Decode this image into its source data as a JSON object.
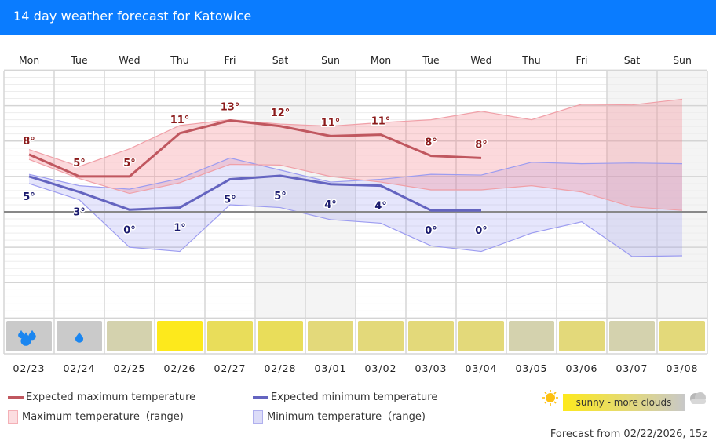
{
  "header": {
    "title": "14 day weather forecast for Katowice"
  },
  "chart_data": {
    "type": "line",
    "title": "14 day weather forecast for Katowice",
    "ylim": [
      -15,
      20
    ],
    "unit": "°",
    "grid": true,
    "days": [
      "Mon",
      "Tue",
      "Wed",
      "Thu",
      "Fri",
      "Sat",
      "Sun",
      "Mon",
      "Tue",
      "Wed",
      "Thu",
      "Fri",
      "Sat",
      "Sun"
    ],
    "dates": [
      "02/23",
      "02/24",
      "02/25",
      "02/26",
      "02/27",
      "02/28",
      "03/01",
      "03/02",
      "03/03",
      "03/04",
      "03/05",
      "03/06",
      "03/07",
      "03/08"
    ],
    "weekend": [
      false,
      false,
      false,
      false,
      false,
      true,
      true,
      false,
      false,
      false,
      false,
      false,
      true,
      true
    ],
    "series": [
      {
        "name": "Expected maximum temperature",
        "color": "#c0575f",
        "values": [
          8.1,
          5.0,
          5.0,
          11.1,
          12.9,
          12.1,
          10.7,
          10.9,
          7.9,
          7.6,
          null,
          null,
          null,
          null
        ],
        "labels": [
          "8°",
          "5°",
          "5°",
          "11°",
          "13°",
          "12°",
          "11°",
          "11°",
          "8°",
          "8°",
          "",
          "",
          "",
          ""
        ]
      },
      {
        "name": "Expected minimum temperature",
        "color": "#6464c0",
        "values": [
          5.0,
          2.8,
          0.3,
          0.6,
          4.6,
          5.1,
          3.9,
          3.7,
          0.2,
          0.2,
          null,
          null,
          null,
          null
        ],
        "labels": [
          "5°",
          "3°",
          "0°",
          "1°",
          "5°",
          "5°",
          "4°",
          "4°",
          "0°",
          "0°",
          "",
          "",
          "",
          ""
        ]
      },
      {
        "name": "Maximum temperature (range)",
        "color": "#f4a0a8",
        "upper": [
          8.8,
          6.4,
          8.9,
          12.2,
          13.0,
          12.4,
          12.1,
          12.6,
          13.0,
          14.2,
          13.0,
          15.2,
          15.1,
          15.9
        ],
        "lower": [
          7.4,
          4.7,
          2.6,
          4.1,
          6.7,
          6.6,
          5.0,
          4.2,
          3.1,
          3.1,
          3.7,
          2.8,
          0.7,
          0.2
        ]
      },
      {
        "name": "Minimum temperature (range)",
        "color": "#9c9cf0",
        "upper": [
          5.3,
          3.7,
          3.2,
          4.7,
          7.6,
          5.9,
          4.2,
          4.6,
          5.3,
          5.2,
          7.0,
          6.8,
          6.9,
          6.8
        ],
        "lower": [
          4.0,
          1.7,
          -5.0,
          -5.6,
          1.0,
          0.6,
          -1.1,
          -1.6,
          -4.8,
          -5.6,
          -3.0,
          -1.4,
          -6.3,
          -6.2
        ]
      }
    ],
    "conditions": [
      {
        "kind": "rain-heavy",
        "color": "#cacaca"
      },
      {
        "kind": "rain-light",
        "color": "#cacaca"
      },
      {
        "kind": "cloudy-sunny",
        "color": "#d4d2ae"
      },
      {
        "kind": "sunny",
        "color": "#fde91c"
      },
      {
        "kind": "mostly-sunny",
        "color": "#e9dd5a"
      },
      {
        "kind": "mostly-sunny",
        "color": "#e9dd5a"
      },
      {
        "kind": "partly-sunny",
        "color": "#e3d97a"
      },
      {
        "kind": "partly-sunny",
        "color": "#e3d97a"
      },
      {
        "kind": "partly-sunny",
        "color": "#e3d97a"
      },
      {
        "kind": "partly-sunny",
        "color": "#e3d97a"
      },
      {
        "kind": "cloudy-sunny",
        "color": "#d4d2ae"
      },
      {
        "kind": "partly-sunny",
        "color": "#e3d97a"
      },
      {
        "kind": "cloudy-sunny",
        "color": "#d4d2ae"
      },
      {
        "kind": "partly-sunny",
        "color": "#e3d97a"
      }
    ]
  },
  "legend": {
    "max_expected": "Expected maximum temperature",
    "max_range": "Maximum temperature（range)",
    "min_expected": "Expected minimum temperature",
    "min_range": "Minimum temperature（range)",
    "condition_scale": "sunny - more clouds",
    "condition_left_icon": "sun-icon",
    "condition_right_icon": "cloud-icon"
  },
  "footer": {
    "forecast_from": "Forecast from 02/22/2026, 15z"
  }
}
